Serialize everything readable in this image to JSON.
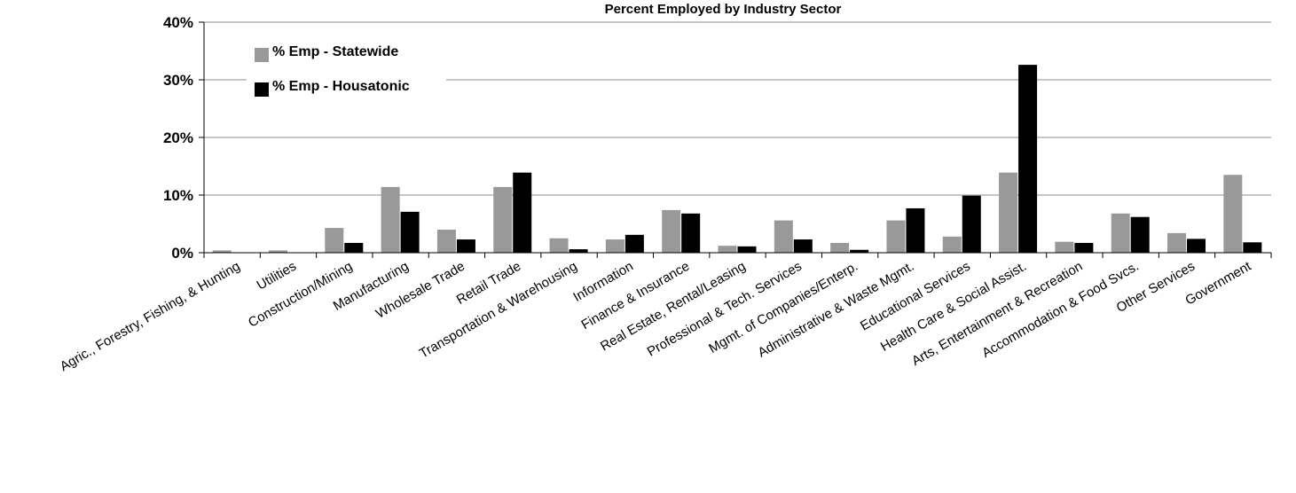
{
  "chart_data": {
    "type": "bar",
    "title": "Percent Employed by Industry Sector",
    "xlabel": "",
    "ylabel": "",
    "ylim": [
      0,
      40
    ],
    "yticks": [
      "0%",
      "10%",
      "20%",
      "30%",
      "40%"
    ],
    "grid": true,
    "legend": "top-left",
    "categories": [
      "Agric., Forestry, Fishing, & Hunting",
      "Utilities",
      "Construction/Mining",
      "Manufacturing",
      "Wholesale Trade",
      "Retail Trade",
      "Transportation & Warehousing",
      "Information",
      "Finance & Insurance",
      "Real Estate, Rental/Leasing",
      "Professional & Tech. Services",
      "Mgmt. of Companies/Enterp.",
      "Administrative & Waste Mgmt.",
      "Educational Services",
      "Health Care & Social Assist.",
      "Arts, Entertainment & Recreation",
      "Accommodation & Food Svcs.",
      "Other Services",
      "Government"
    ],
    "series": [
      {
        "name": "% Emp - Statewide",
        "color": "#999999",
        "values": [
          0.4,
          0.4,
          4.3,
          11.4,
          4.0,
          11.4,
          2.5,
          2.3,
          7.4,
          1.2,
          5.6,
          1.7,
          5.6,
          2.8,
          13.9,
          1.9,
          6.8,
          3.4,
          13.5
        ]
      },
      {
        "name": "% Emp - Housatonic",
        "color": "#000000",
        "values": [
          0.0,
          0.0,
          1.7,
          7.1,
          2.3,
          13.9,
          0.6,
          3.1,
          6.8,
          1.1,
          2.3,
          0.5,
          7.7,
          9.9,
          32.6,
          1.7,
          6.2,
          2.4,
          1.8
        ]
      }
    ]
  }
}
